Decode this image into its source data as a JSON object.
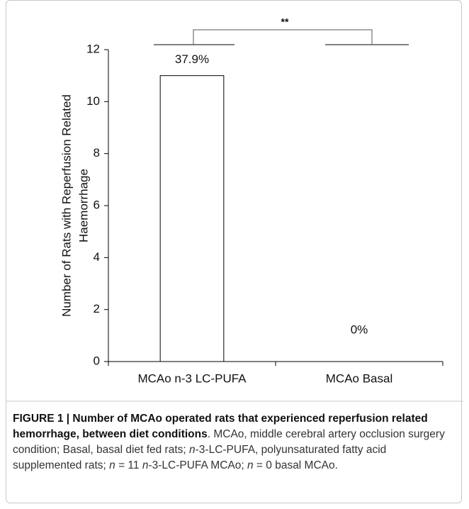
{
  "chart_data": {
    "type": "bar",
    "y_label": [
      "Number of Rats with Reperfusion Related",
      "Haemorrhage"
    ],
    "categories": [
      "MCAo n-3 LC-PUFA",
      "MCAo Basal"
    ],
    "values": [
      11,
      0
    ],
    "color": "#ffffff",
    "ylim": [
      0,
      12
    ],
    "yticks": [
      0,
      2,
      4,
      6,
      8,
      10,
      12
    ],
    "annotations": [
      "37.9%",
      "0%"
    ],
    "significance": "**"
  },
  "caption": {
    "title": "FIGURE 1 | Number of MCAo operated rats that experienced reperfusion related hemorrhage, between diet conditions",
    "body": [
      {
        "text": ". MCAo, middle cerebral artery occlusion surgery condition; Basal, basal diet fed rats; "
      },
      {
        "text": "n",
        "italic": true
      },
      {
        "text": "-3-LC-PUFA, polyunsaturated fatty acid supplemented rats; "
      },
      {
        "text": "n",
        "italic": true
      },
      {
        "text": " = 11 "
      },
      {
        "text": "n",
        "italic": true
      },
      {
        "text": "-3-LC-PUFA MCAo; "
      },
      {
        "text": "n",
        "italic": true
      },
      {
        "text": " = 0 basal MCAo."
      }
    ]
  }
}
